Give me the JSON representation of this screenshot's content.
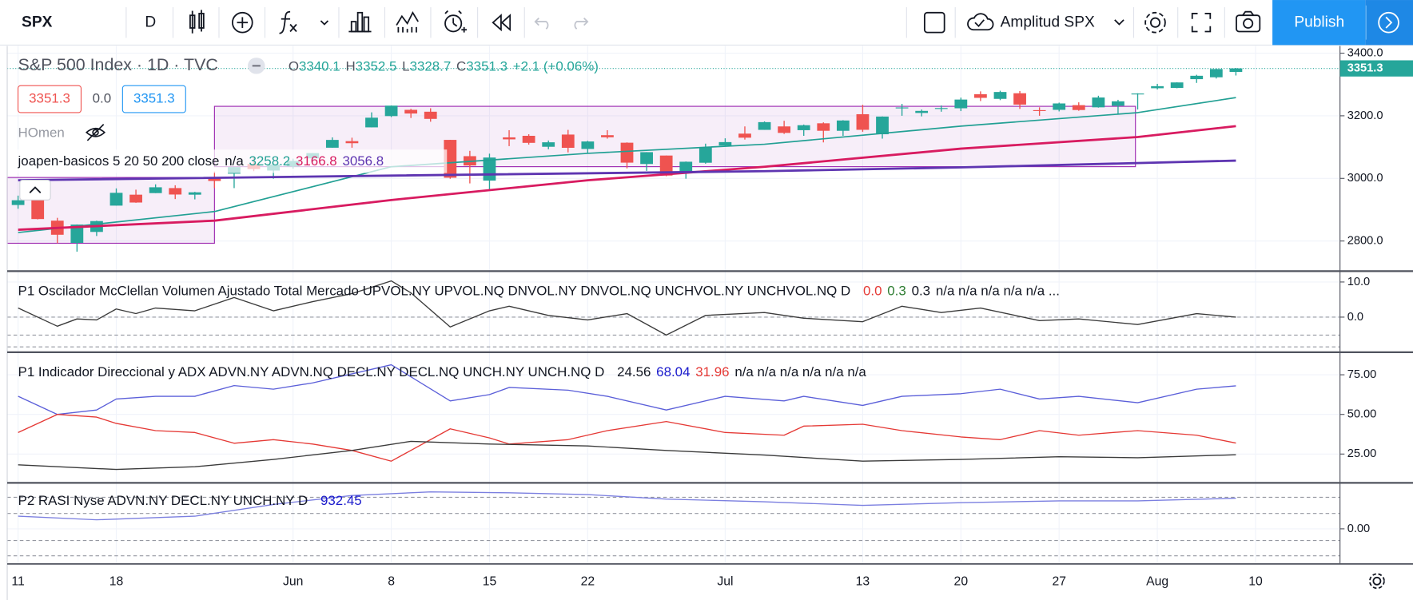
{
  "toolbar": {
    "symbol": "SPX",
    "interval": "D",
    "layout": "Amplitud SPX",
    "publish": "Publish"
  },
  "chart_data": [
    {
      "type": "candlestick",
      "title": "S&P 500 Index · 1D · TVC",
      "ohlc_labels": [
        "O",
        "H",
        "L",
        "C"
      ],
      "change": "+2.1 (+0.06%)",
      "price_boxes": [
        "3351.3",
        "0.0",
        "3351.3"
      ],
      "hidden_indicator": "HOmen",
      "overlay_title": "joapen-basicos 5 20 50 200 close",
      "overlay_na": "n/a",
      "up_color": "#26a69a",
      "down_color": "#ef5350",
      "open": [
        2915,
        2939,
        2865,
        2794,
        2829,
        2913,
        2948,
        2953,
        2969,
        2948,
        3004,
        3015,
        3046,
        3025,
        3038,
        3064,
        3098,
        3119,
        3163,
        3199,
        3219,
        3213,
        3123,
        3071,
        2993,
        3131,
        3136,
        3101,
        3140,
        3094,
        3138,
        3114,
        3046,
        3073,
        3018,
        3050,
        3105,
        3143,
        3155,
        3166,
        3154,
        3176,
        3152,
        3205,
        3141,
        3225,
        3209,
        3224,
        3224,
        3269,
        3254,
        3272,
        3218,
        3219,
        3234,
        3227,
        3232,
        3270,
        3288,
        3289,
        3317,
        3323,
        3340.1
      ],
      "high": [
        2945,
        2945,
        2874,
        2853,
        2865,
        2968,
        2964,
        2981,
        2978,
        2957,
        3022,
        3037,
        3068,
        3050,
        3063,
        3081,
        3131,
        3130,
        3211,
        3233,
        3222,
        3224,
        3123,
        3088,
        3079,
        3154,
        3141,
        3121,
        3155,
        3120,
        3154,
        3115,
        3084,
        3073,
        3054,
        3111,
        3128,
        3166,
        3182,
        3184,
        3172,
        3179,
        3186,
        3235,
        3198,
        3238,
        3220,
        3233,
        3258,
        3278,
        3280,
        3279,
        3227,
        3242,
        3243,
        3264,
        3251,
        3272,
        3302,
        3307,
        3331,
        3351,
        3352.5
      ],
      "low": [
        2903,
        2869,
        2793,
        2766,
        2816,
        2913,
        2922,
        2953,
        2934,
        2933,
        2969,
        2969,
        3023,
        2999,
        3031,
        3051,
        3098,
        3098,
        3163,
        3196,
        3193,
        3181,
        2999,
        2984,
        2965,
        3103,
        3108,
        3093,
        3083,
        3080,
        3127,
        3032,
        3024,
        3007,
        2999,
        3047,
        3102,
        3124,
        3155,
        3142,
        3136,
        3115,
        3136,
        3149,
        3127,
        3200,
        3198,
        3213,
        3215,
        3247,
        3250,
        3222,
        3200,
        3214,
        3216,
        3226,
        3205,
        3220,
        3284,
        3288,
        3305,
        3319,
        3328.7
      ],
      "close": [
        2930.2,
        2870.1,
        2820,
        2852.5,
        2863.7,
        2953.9,
        2922.9,
        2971.6,
        2948.5,
        2955.5,
        2991.8,
        3036.1,
        3029.7,
        3044.3,
        3055.7,
        3080.8,
        3122.9,
        3112.4,
        3193.9,
        3232.4,
        3207.2,
        3190.1,
        3002.1,
        3041.3,
        3066.6,
        3124.7,
        3113.5,
        3115.3,
        3097.7,
        3117.9,
        3131.3,
        3050.3,
        3083.8,
        3009.1,
        3053.2,
        3100.3,
        3115.9,
        3130,
        3179.7,
        3145.3,
        3169.9,
        3152.1,
        3185,
        3155.2,
        3197.5,
        3226.6,
        3215.6,
        3224.7,
        3251.8,
        3257.3,
        3276,
        3235.7,
        3215.6,
        3239.4,
        3218.4,
        3258.4,
        3246.2,
        3271.1,
        3294.6,
        3306.5,
        3327.8,
        3349.2,
        3351.3
      ],
      "series": [
        {
          "color": "#22a094",
          "width": 1.5,
          "x": [
            0,
            10,
            19,
            29,
            38,
            48,
            57,
            62
          ],
          "values": [
            2827,
            2894,
            3037,
            3080,
            3109,
            3167,
            3210,
            3258.2
          ]
        },
        {
          "color": "#d81b60",
          "width": 2.5,
          "x": [
            0,
            10,
            19,
            29,
            38,
            48,
            57,
            62
          ],
          "values": [
            2836,
            2865,
            2931,
            2994,
            3037,
            3095,
            3132,
            3166.8
          ]
        },
        {
          "color": "#5e35b1",
          "width": 2.5,
          "x": [
            0,
            19,
            38,
            48,
            62
          ],
          "values": [
            2994,
            3009,
            3023,
            3035,
            3056.8
          ]
        }
      ],
      "xlim": [
        -0.92,
        67.3
      ],
      "xticks": [
        {
          "value": 0,
          "label": "11"
        },
        {
          "value": 5,
          "label": "18"
        },
        {
          "value": 14,
          "label": "Jun"
        },
        {
          "value": 19,
          "label": "8"
        },
        {
          "value": 24,
          "label": "15"
        },
        {
          "value": 29,
          "label": "22"
        },
        {
          "value": 36,
          "label": "Jul"
        },
        {
          "value": 43,
          "label": "13"
        },
        {
          "value": 48,
          "label": "20"
        },
        {
          "value": 53,
          "label": "27"
        },
        {
          "value": 58,
          "label": "Aug"
        },
        {
          "value": 63,
          "label": "10"
        }
      ],
      "ylim": [
        2706.5,
        3425.9
      ],
      "yticks": [
        {
          "value": 2800,
          "label": "2800.0"
        },
        {
          "value": 3000,
          "label": "3000.0"
        },
        {
          "value": 3200,
          "label": "3200.0"
        },
        {
          "value": 3400,
          "label": "3400.0"
        }
      ],
      "grid": true
    },
    {
      "type": "line",
      "title": "P1 Oscilador McClellan Volumen Ajustado Total Mercado UPVOL.NY UPVOL.NQ DNVOL.NY DNVOL.NQ UNCHVOL.NY UNCHVOL.NQ D",
      "legend_values": [
        "0.0",
        "0.3",
        "0.3",
        "n/a n/a n/a n/a n/a ..."
      ],
      "series": [
        {
          "color": "#3b3b3b",
          "width": 1.2,
          "x": [
            0,
            2,
            3,
            4,
            5,
            6,
            7,
            9,
            11,
            13,
            15,
            17,
            19,
            20,
            22,
            24,
            25,
            27,
            29,
            31,
            33,
            35,
            38,
            40,
            43,
            45,
            47,
            49,
            52,
            54,
            57,
            60,
            62
          ],
          "values": [
            2.6,
            -2.6,
            -0.5,
            -0.8,
            2.3,
            1.0,
            2.6,
            1.8,
            5.6,
            1.8,
            4.4,
            6.7,
            10.3,
            6.9,
            -2.8,
            1.8,
            3.1,
            0.5,
            -0.8,
            1.0,
            -5.1,
            0.5,
            1.3,
            -0.3,
            -1.3,
            3.1,
            1.3,
            2.6,
            -1.0,
            -0.5,
            -2.1,
            1.0,
            0
          ]
        }
      ],
      "ylim": [
        -9.74,
        12.82
      ],
      "yticks": [
        {
          "value": 0,
          "label": "0.0"
        },
        {
          "value": 10,
          "label": "10.0"
        }
      ]
    },
    {
      "type": "line",
      "title": "P1 Indicador Direccional y ADX ADVN.NY ADVN.NQ DECL.NY DECL.NQ UNCH.NY UNCH.NQ D",
      "legend_na": "n/a n/a n/a n/a n/a n/a",
      "series": [
        {
          "color": "#5b5fd9",
          "width": 1.2,
          "x": [
            0,
            2,
            4,
            5,
            7,
            9,
            11,
            13,
            15,
            17,
            19,
            22,
            24,
            25,
            28,
            30,
            33,
            36,
            39,
            40,
            43,
            45,
            48,
            50,
            52,
            54,
            57,
            60,
            62
          ],
          "values": [
            61.4,
            50,
            52.8,
            59.7,
            61.4,
            61.4,
            68.2,
            65.9,
            69.9,
            75.6,
            81.3,
            58.5,
            62.5,
            67,
            65.3,
            61.4,
            52.8,
            61.4,
            58.5,
            61.4,
            55.7,
            61.4,
            63.1,
            65.9,
            59.7,
            61.4,
            57.4,
            65.9,
            68.04
          ]
        },
        {
          "color": "#e53935",
          "width": 1.2,
          "x": [
            0,
            2,
            4,
            5,
            7,
            9,
            11,
            13,
            15,
            17,
            19,
            22,
            24,
            25,
            28,
            30,
            33,
            36,
            39,
            40,
            43,
            45,
            48,
            50,
            52,
            54,
            57,
            60,
            62
          ],
          "values": [
            38.6,
            50,
            48.3,
            44.3,
            39.8,
            38.6,
            31.8,
            34.1,
            31.3,
            27.3,
            20.5,
            40.9,
            35.2,
            31.3,
            34.1,
            39.8,
            45.5,
            38.6,
            36.9,
            42.6,
            43.8,
            39.8,
            35.8,
            34.1,
            39.8,
            36.9,
            39.8,
            36.9,
            31.96
          ]
        },
        {
          "color": "#3b3b3b",
          "width": 1.2,
          "x": [
            0,
            5,
            9,
            13,
            17,
            20,
            24,
            29,
            33,
            38,
            43,
            48,
            53,
            57,
            62
          ],
          "values": [
            18.2,
            15.3,
            17,
            21.6,
            27.3,
            33,
            31.3,
            30.1,
            27.3,
            24.4,
            20.5,
            21.6,
            23.3,
            22.7,
            24.56
          ]
        }
      ],
      "ylim": [
        7.39,
        88.64
      ],
      "yticks": [
        {
          "value": 25,
          "label": "25.00"
        },
        {
          "value": 50,
          "label": "50.00"
        },
        {
          "value": 75,
          "label": "75.00"
        }
      ]
    },
    {
      "type": "line",
      "title": "P2 RASI Nyse ADVN.NY DECL.NY UNCH.NY D",
      "series": [
        {
          "color": "#7b7fe0",
          "width": 1.2,
          "x": [
            0,
            4,
            9,
            13,
            17,
            21,
            25,
            29,
            33,
            38,
            43,
            48,
            53,
            57,
            62
          ],
          "values": [
            384,
            274,
            384,
            740,
            1014,
            1123,
            1096,
            1041,
            904,
            822,
            712,
            795,
            849,
            849,
            932.45
          ]
        }
      ],
      "ylim": [
        -1041,
        1370
      ],
      "yticks": [
        {
          "value": 0,
          "label": "0.00"
        }
      ]
    }
  ]
}
